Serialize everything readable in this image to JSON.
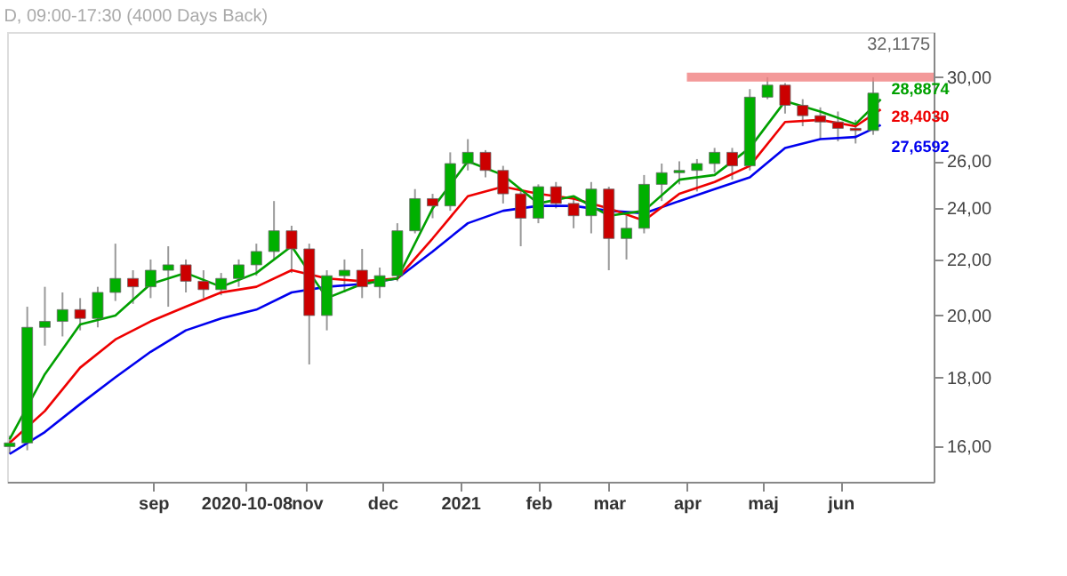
{
  "chart_data": {
    "type": "candlestick",
    "title": "D, 09:00-17:30 (4000 Days Back)",
    "x": [
      "2020-07-06",
      "2020-07-13",
      "2020-07-20",
      "2020-07-27",
      "2020-08-03",
      "2020-08-10",
      "2020-08-17",
      "2020-08-24",
      "2020-08-31",
      "2020-09-07",
      "2020-09-14",
      "2020-09-21",
      "2020-09-28",
      "2020-10-05",
      "2020-10-12",
      "2020-10-19",
      "2020-10-26",
      "2020-11-02",
      "2020-11-09",
      "2020-11-16",
      "2020-11-23",
      "2020-11-30",
      "2020-12-07",
      "2020-12-14",
      "2020-12-21",
      "2020-12-28",
      "2021-01-04",
      "2021-01-11",
      "2021-01-18",
      "2021-01-25",
      "2021-02-01",
      "2021-02-08",
      "2021-02-15",
      "2021-02-22",
      "2021-03-01",
      "2021-03-08",
      "2021-03-15",
      "2021-03-22",
      "2021-03-29",
      "2021-04-05",
      "2021-04-12",
      "2021-04-19",
      "2021-04-26",
      "2021-05-03",
      "2021-05-10",
      "2021-05-17",
      "2021-05-24",
      "2021-05-31",
      "2021-06-07",
      "2021-06-14"
    ],
    "ohlc": [
      [
        16.0,
        16.3,
        15.8,
        16.1
      ],
      [
        16.1,
        20.3,
        15.9,
        19.6
      ],
      [
        19.6,
        21.0,
        19.0,
        19.8
      ],
      [
        19.8,
        20.8,
        19.3,
        20.2
      ],
      [
        20.2,
        20.6,
        19.5,
        19.9
      ],
      [
        19.9,
        21.0,
        19.6,
        20.8
      ],
      [
        20.8,
        22.6,
        20.5,
        21.3
      ],
      [
        21.3,
        21.6,
        20.4,
        21.0
      ],
      [
        21.0,
        22.0,
        20.6,
        21.6
      ],
      [
        21.6,
        22.5,
        20.3,
        21.8
      ],
      [
        21.8,
        22.0,
        20.8,
        21.2
      ],
      [
        21.2,
        21.6,
        20.6,
        20.9
      ],
      [
        20.9,
        21.5,
        20.7,
        21.3
      ],
      [
        21.3,
        22.0,
        21.0,
        21.8
      ],
      [
        21.8,
        22.6,
        21.4,
        22.3
      ],
      [
        22.3,
        24.3,
        22.0,
        23.1
      ],
      [
        23.1,
        23.3,
        21.5,
        22.4
      ],
      [
        22.4,
        22.6,
        18.4,
        20.0
      ],
      [
        20.0,
        21.6,
        19.5,
        21.4
      ],
      [
        21.4,
        22.0,
        20.8,
        21.6
      ],
      [
        21.6,
        22.4,
        20.6,
        21.0
      ],
      [
        21.0,
        21.7,
        20.6,
        21.4
      ],
      [
        21.4,
        23.4,
        21.2,
        23.1
      ],
      [
        23.1,
        24.8,
        23.0,
        24.4
      ],
      [
        24.4,
        24.6,
        23.6,
        24.1
      ],
      [
        24.1,
        26.4,
        23.9,
        25.9
      ],
      [
        25.9,
        27.0,
        25.6,
        26.4
      ],
      [
        26.4,
        26.5,
        25.3,
        25.6
      ],
      [
        25.6,
        25.8,
        24.2,
        24.6
      ],
      [
        24.6,
        24.8,
        22.5,
        23.6
      ],
      [
        23.6,
        25.0,
        23.4,
        24.9
      ],
      [
        24.9,
        25.1,
        24.0,
        24.2
      ],
      [
        24.2,
        24.4,
        23.2,
        23.7
      ],
      [
        23.7,
        25.1,
        23.0,
        24.8
      ],
      [
        24.8,
        24.9,
        21.6,
        22.8
      ],
      [
        22.8,
        23.7,
        22.0,
        23.2
      ],
      [
        23.2,
        25.4,
        23.0,
        25.0
      ],
      [
        25.0,
        25.9,
        24.3,
        25.5
      ],
      [
        25.5,
        26.0,
        25.0,
        25.6
      ],
      [
        25.6,
        26.1,
        24.7,
        25.9
      ],
      [
        25.9,
        26.6,
        25.5,
        26.4
      ],
      [
        26.4,
        26.6,
        25.2,
        25.8
      ],
      [
        25.8,
        29.4,
        25.6,
        29.0
      ],
      [
        29.0,
        30.0,
        28.9,
        29.6
      ],
      [
        29.6,
        29.7,
        28.2,
        28.6
      ],
      [
        28.6,
        28.9,
        27.6,
        28.1
      ],
      [
        28.1,
        28.5,
        27.0,
        27.8
      ],
      [
        27.8,
        28.3,
        26.9,
        27.5
      ],
      [
        27.5,
        27.9,
        26.8,
        27.4
      ],
      [
        27.4,
        30.0,
        27.2,
        29.2
      ]
    ],
    "colors": [
      "#00b000",
      "#00b000",
      "#00b000",
      "#00b000",
      "#cc0000",
      "#00b000",
      "#00b000",
      "#cc0000",
      "#00b000",
      "#00b000",
      "#cc0000",
      "#cc0000",
      "#00b000",
      "#00b000",
      "#00b000",
      "#00b000",
      "#cc0000",
      "#cc0000",
      "#00b000",
      "#00b000",
      "#cc0000",
      "#00b000",
      "#00b000",
      "#00b000",
      "#cc0000",
      "#00b000",
      "#00b000",
      "#cc0000",
      "#cc0000",
      "#cc0000",
      "#00b000",
      "#cc0000",
      "#cc0000",
      "#00b000",
      "#cc0000",
      "#00b000",
      "#00b000",
      "#00b000",
      "#00b000",
      "#00b000",
      "#00b000",
      "#cc0000",
      "#00b000",
      "#00b000",
      "#cc0000",
      "#cc0000",
      "#cc0000",
      "#cc0000",
      "#cc0000",
      "#00b000"
    ],
    "series": [
      {
        "type": "line",
        "color": "#f08080",
        "x": [
          "2021-04-01",
          "2021-07-08"
        ],
        "values": [
          30.0,
          30.0
        ]
      },
      {
        "type": "line",
        "color": "#0000ee",
        "x": [
          "2020-07-06",
          "2020-07-20",
          "2020-08-03",
          "2020-08-17",
          "2020-08-31",
          "2020-09-14",
          "2020-09-28",
          "2020-10-12",
          "2020-10-26",
          "2020-11-09",
          "2020-11-23",
          "2020-12-07",
          "2020-12-21",
          "2021-01-04",
          "2021-01-18",
          "2021-02-01",
          "2021-02-15",
          "2021-03-01",
          "2021-03-15",
          "2021-03-29",
          "2021-04-12",
          "2021-04-26",
          "2021-05-10",
          "2021-05-24",
          "2021-06-07",
          "2021-06-17"
        ],
        "values": [
          15.8,
          16.4,
          17.2,
          18.0,
          18.8,
          19.5,
          19.9,
          20.2,
          20.8,
          21.0,
          21.1,
          21.3,
          22.3,
          23.4,
          23.9,
          24.1,
          24.1,
          23.9,
          23.8,
          24.3,
          24.8,
          25.3,
          26.6,
          27.0,
          27.1,
          27.66
        ],
        "value_labels": [
          null,
          null,
          null,
          null,
          null,
          null,
          null,
          null,
          null,
          null,
          null,
          null,
          null,
          null,
          null,
          null,
          null,
          null,
          null,
          null,
          null,
          null,
          null,
          null,
          null,
          "27,6592"
        ]
      },
      {
        "type": "line",
        "color": "#ee0000",
        "x": [
          "2020-07-06",
          "2020-07-20",
          "2020-08-03",
          "2020-08-17",
          "2020-08-31",
          "2020-09-14",
          "2020-09-28",
          "2020-10-12",
          "2020-10-26",
          "2020-11-09",
          "2020-11-23",
          "2020-12-07",
          "2020-12-21",
          "2021-01-04",
          "2021-01-18",
          "2021-02-01",
          "2021-02-15",
          "2021-03-01",
          "2021-03-15",
          "2021-03-29",
          "2021-04-12",
          "2021-04-26",
          "2021-05-10",
          "2021-05-24",
          "2021-06-07",
          "2021-06-17"
        ],
        "values": [
          16.1,
          17.0,
          18.3,
          19.2,
          19.8,
          20.3,
          20.8,
          21.0,
          21.6,
          21.3,
          21.2,
          21.3,
          22.8,
          24.5,
          24.9,
          24.6,
          24.4,
          24.0,
          23.5,
          24.6,
          25.1,
          25.8,
          27.8,
          27.9,
          27.6,
          28.4
        ],
        "value_labels": [
          null,
          null,
          null,
          null,
          null,
          null,
          null,
          null,
          null,
          null,
          null,
          null,
          null,
          null,
          null,
          null,
          null,
          null,
          null,
          null,
          null,
          null,
          null,
          null,
          null,
          "28,4030"
        ]
      },
      {
        "type": "line",
        "color": "#00a000",
        "x": [
          "2020-07-06",
          "2020-07-20",
          "2020-08-03",
          "2020-08-17",
          "2020-08-31",
          "2020-09-14",
          "2020-09-28",
          "2020-10-12",
          "2020-10-26",
          "2020-11-09",
          "2020-11-23",
          "2020-12-07",
          "2020-12-21",
          "2021-01-04",
          "2021-01-18",
          "2021-02-01",
          "2021-02-15",
          "2021-03-01",
          "2021-03-15",
          "2021-03-29",
          "2021-04-12",
          "2021-04-26",
          "2021-05-10",
          "2021-05-24",
          "2021-06-07",
          "2021-06-17"
        ],
        "values": [
          16.2,
          18.1,
          19.7,
          20.0,
          21.1,
          21.5,
          21.0,
          21.5,
          22.5,
          20.6,
          21.1,
          21.3,
          24.0,
          26.0,
          25.4,
          24.2,
          24.5,
          23.7,
          23.9,
          25.2,
          25.4,
          26.6,
          28.8,
          28.3,
          27.7,
          28.89
        ],
        "value_labels": [
          null,
          null,
          null,
          null,
          null,
          null,
          null,
          null,
          null,
          null,
          null,
          null,
          null,
          null,
          null,
          null,
          null,
          null,
          null,
          null,
          null,
          null,
          null,
          null,
          null,
          "28,8874"
        ]
      }
    ],
    "xlim": [
      "2020-07-05",
      "2021-07-08"
    ],
    "xticks": [
      {
        "value": "2020-09-01",
        "label": "sep"
      },
      {
        "value": "2020-10-08",
        "label": "2020-10-08"
      },
      {
        "value": "2020-11-01",
        "label": "nov"
      },
      {
        "value": "2020-12-01",
        "label": "dec"
      },
      {
        "value": "2021-01-01",
        "label": "2021"
      },
      {
        "value": "2021-02-01",
        "label": "feb"
      },
      {
        "value": "2021-03-01",
        "label": "mar"
      },
      {
        "value": "2021-04-01",
        "label": "apr"
      },
      {
        "value": "2021-05-01",
        "label": "maj"
      },
      {
        "value": "2021-06-01",
        "label": "jun"
      }
    ],
    "ylim": [
      15.07,
      32.4
    ],
    "log": true,
    "yticks": [
      {
        "value": 16,
        "label": "16,00"
      },
      {
        "value": 18,
        "label": "18,00"
      },
      {
        "value": 20,
        "label": "20,00"
      },
      {
        "value": 22,
        "label": "22,00"
      },
      {
        "value": 24,
        "label": "24,00"
      },
      {
        "value": 26,
        "label": "26,00"
      },
      {
        "value": 28,
        "label": null
      },
      {
        "value": 30,
        "label": "30,00"
      }
    ],
    "annotations": [
      "32,1175"
    ],
    "grid": false,
    "legend": false
  }
}
